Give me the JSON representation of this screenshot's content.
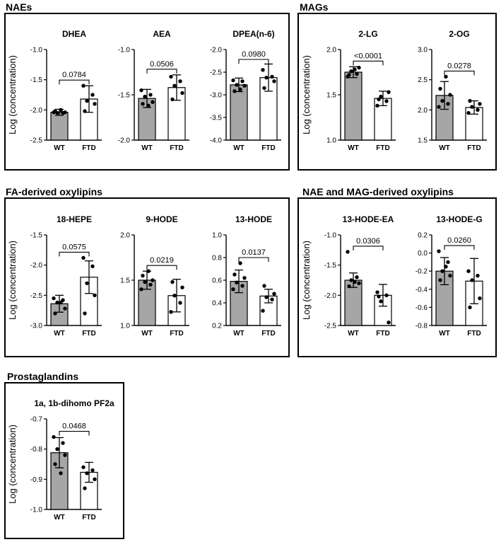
{
  "groups": [
    {
      "title": "NAEs",
      "ylabel": "Log (concentration)"
    },
    {
      "title": "MAGs",
      "ylabel": "Log (concentration)"
    },
    {
      "title": "FA-derived oxylipins",
      "ylabel": "Log (concentration)"
    },
    {
      "title": "NAE and MAG-derived oxylipins",
      "ylabel": "Log (concentration)"
    },
    {
      "title": "Prostaglandins",
      "ylabel": "Log (concentration)"
    }
  ],
  "colors": {
    "wt_bar": "#a6a6a6",
    "ftd_bar": "#ffffff",
    "points": "#000000"
  },
  "chart_data": [
    {
      "group": 0,
      "type": "bar",
      "title": "DHEA",
      "categories": [
        "WT",
        "FTD"
      ],
      "ylim": [
        -2.5,
        -1.0
      ],
      "yticks": [
        "-1.0",
        "-1.5",
        "-2.0",
        "-2.5"
      ],
      "means": [
        -2.04,
        -1.82
      ],
      "sd": [
        0.05,
        0.22
      ],
      "points": [
        [
          -2.04,
          -2.05,
          -2.05,
          -2.04,
          -2.02,
          -2.0
        ],
        [
          -1.6,
          -1.75,
          -1.85,
          -1.9,
          -2.02
        ]
      ],
      "p_value": "0.0784"
    },
    {
      "group": 0,
      "type": "bar",
      "title": "AEA",
      "categories": [
        "WT",
        "FTD"
      ],
      "ylim": [
        -2.0,
        -1.0
      ],
      "yticks": [
        "-1.0",
        "-1.5",
        "-2.0"
      ],
      "means": [
        -1.54,
        -1.42
      ],
      "sd": [
        0.1,
        0.14
      ],
      "points": [
        [
          -1.45,
          -1.5,
          -1.52,
          -1.58,
          -1.6,
          -1.62
        ],
        [
          -1.3,
          -1.35,
          -1.4,
          -1.48,
          -1.55
        ]
      ],
      "p_value": "0.0506"
    },
    {
      "group": 0,
      "type": "bar",
      "title": "DPEA(n-6)",
      "categories": [
        "WT",
        "FTD"
      ],
      "ylim": [
        -4.0,
        -2.0
      ],
      "yticks": [
        "-2.0",
        "-2.5",
        "-3.0",
        "-3.5",
        "-4.0"
      ],
      "means": [
        -2.78,
        -2.62
      ],
      "sd": [
        0.15,
        0.3
      ],
      "points": [
        [
          -2.68,
          -2.7,
          -2.78,
          -2.8,
          -2.92,
          -2.88
        ],
        [
          -2.45,
          -2.6,
          -2.62,
          -2.7,
          -2.85
        ]
      ],
      "p_value": "0.0980"
    },
    {
      "group": 1,
      "type": "bar",
      "title": "2-LG",
      "categories": [
        "WT",
        "FTD"
      ],
      "ylim": [
        1.0,
        2.0
      ],
      "yticks": [
        "1.0",
        "1.5",
        "2.0"
      ],
      "means": [
        1.75,
        1.46
      ],
      "sd": [
        0.06,
        0.08
      ],
      "points": [
        [
          1.7,
          1.73,
          1.76,
          1.8,
          1.72,
          1.78
        ],
        [
          1.38,
          1.43,
          1.48,
          1.53,
          1.45
        ]
      ],
      "p_value": "<0.0001"
    },
    {
      "group": 1,
      "type": "bar",
      "title": "2-OG",
      "categories": [
        "WT",
        "FTD"
      ],
      "ylim": [
        1.5,
        3.0
      ],
      "yticks": [
        "1.5",
        "2.0",
        "2.5",
        "3.0"
      ],
      "means": [
        2.24,
        2.04
      ],
      "sd": [
        0.23,
        0.11
      ],
      "points": [
        [
          2.05,
          2.1,
          2.15,
          2.25,
          2.35,
          2.55
        ],
        [
          1.95,
          2.0,
          2.05,
          2.1,
          2.15
        ]
      ],
      "p_value": "0.0278"
    },
    {
      "group": 2,
      "type": "bar",
      "title": "18-HEPE",
      "categories": [
        "WT",
        "FTD"
      ],
      "ylim": [
        -3.0,
        -1.5
      ],
      "yticks": [
        "-1.5",
        "-2.0",
        "-2.5",
        "-3.0"
      ],
      "means": [
        -2.64,
        -2.2
      ],
      "sd": [
        0.14,
        0.27
      ],
      "points": [
        [
          -2.55,
          -2.58,
          -2.62,
          -2.72,
          -2.8,
          -2.62
        ],
        [
          -1.88,
          -2.02,
          -2.3,
          -2.5,
          -2.8
        ]
      ],
      "p_value": "0.0575"
    },
    {
      "group": 2,
      "type": "bar",
      "title": "9-HODE",
      "categories": [
        "WT",
        "FTD"
      ],
      "ylim": [
        1.0,
        2.0
      ],
      "yticks": [
        "1.0",
        "1.5",
        "2.0"
      ],
      "means": [
        1.5,
        1.33
      ],
      "sd": [
        0.1,
        0.18
      ],
      "points": [
        [
          1.4,
          1.45,
          1.48,
          1.5,
          1.55,
          1.6
        ],
        [
          1.15,
          1.25,
          1.33,
          1.42,
          1.48
        ]
      ],
      "p_value": "0.0219"
    },
    {
      "group": 2,
      "type": "bar",
      "title": "13-HODE",
      "categories": [
        "WT",
        "FTD"
      ],
      "ylim": [
        0.2,
        1.0
      ],
      "yticks": [
        "0.2",
        "0.4",
        "0.6",
        "0.8",
        "1.0"
      ],
      "means": [
        0.59,
        0.46
      ],
      "sd": [
        0.1,
        0.06
      ],
      "points": [
        [
          0.52,
          0.55,
          0.58,
          0.62,
          0.65,
          0.75
        ],
        [
          0.33,
          0.43,
          0.45,
          0.48,
          0.55
        ]
      ],
      "p_value": "0.0137"
    },
    {
      "group": 3,
      "type": "bar",
      "title": "13-HODE-EA",
      "categories": [
        "WT",
        "FTD"
      ],
      "ylim": [
        -2.5,
        -1.0
      ],
      "yticks": [
        "-1.0",
        "-1.5",
        "-2.0",
        "-2.5"
      ],
      "means": [
        -1.75,
        -2.0
      ],
      "sd": [
        0.12,
        0.18
      ],
      "points": [
        [
          -1.28,
          -1.7,
          -1.75,
          -1.8,
          -1.85,
          -1.78
        ],
        [
          -1.95,
          -2.0,
          -2.1,
          -2.45,
          -2.02
        ]
      ],
      "p_value": "0.0306"
    },
    {
      "group": 3,
      "type": "bar",
      "title": "13-HODE-G",
      "categories": [
        "WT",
        "FTD"
      ],
      "ylim": [
        -0.8,
        0.2
      ],
      "yticks": [
        "0.2",
        "0.0",
        "-0.2",
        "-0.4",
        "-0.6",
        "-0.8"
      ],
      "means": [
        -0.2,
        -0.31
      ],
      "sd": [
        0.15,
        0.25
      ],
      "points": [
        [
          0.02,
          -0.1,
          -0.2,
          -0.25,
          -0.3,
          -0.15
        ],
        [
          -0.2,
          -0.25,
          -0.3,
          -0.5,
          -0.6
        ]
      ],
      "p_value": "0.0260"
    },
    {
      "group": 4,
      "type": "bar",
      "title": "1a, 1b-dihomo PF2a",
      "categories": [
        "WT",
        "FTD"
      ],
      "ylim": [
        -1.0,
        -0.7
      ],
      "yticks": [
        "-0.7",
        "-0.8",
        "-0.9",
        "-1.0"
      ],
      "means": [
        -0.812,
        -0.877
      ],
      "sd": [
        0.05,
        0.033
      ],
      "points": [
        [
          -0.76,
          -0.78,
          -0.8,
          -0.82,
          -0.85,
          -0.88
        ],
        [
          -0.86,
          -0.87,
          -0.88,
          -0.9,
          -0.93
        ]
      ],
      "p_value": "0.0468"
    }
  ]
}
